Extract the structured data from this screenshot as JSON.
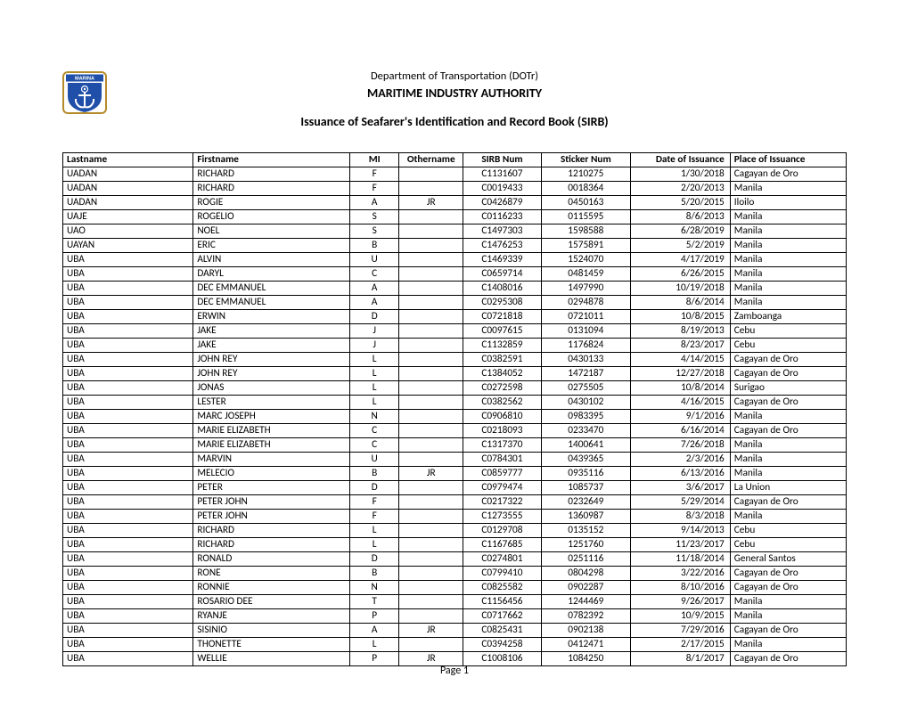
{
  "header": {
    "department": "Department of Transportation (DOTr)",
    "authority": "MARITIME INDUSTRY AUTHORITY",
    "subtitle": "Issuance of Seafarer's Identification and Record Book (SIRB)"
  },
  "logo": {
    "top_text": "MARINA",
    "bg_color": "#1f4fa8",
    "border_color": "#b58a2a",
    "symbol_color": "#ffffff"
  },
  "table": {
    "columns": [
      {
        "key": "lastname",
        "label": "Lastname",
        "class": "col-lastname"
      },
      {
        "key": "firstname",
        "label": "Firstname",
        "class": "col-firstname"
      },
      {
        "key": "mi",
        "label": "MI",
        "class": "col-mi"
      },
      {
        "key": "othername",
        "label": "Othername",
        "class": "col-othername"
      },
      {
        "key": "sirb",
        "label": "SIRB Num",
        "class": "col-sirb"
      },
      {
        "key": "sticker",
        "label": "Sticker Num",
        "class": "col-sticker"
      },
      {
        "key": "date",
        "label": "Date of Issuance",
        "class": "col-date"
      },
      {
        "key": "place",
        "label": "Place of Issuance",
        "class": "col-place"
      }
    ],
    "rows": [
      {
        "lastname": "UADAN",
        "firstname": "RICHARD",
        "mi": "F",
        "othername": "",
        "sirb": "C1131607",
        "sticker": "1210275",
        "date": "1/30/2018",
        "place": "Cagayan de Oro"
      },
      {
        "lastname": "UADAN",
        "firstname": "RICHARD",
        "mi": "F",
        "othername": "",
        "sirb": "C0019433",
        "sticker": "0018364",
        "date": "2/20/2013",
        "place": "Manila"
      },
      {
        "lastname": "UADAN",
        "firstname": "ROGIE",
        "mi": "A",
        "othername": "JR",
        "sirb": "C0426879",
        "sticker": "0450163",
        "date": "5/20/2015",
        "place": "Iloilo"
      },
      {
        "lastname": "UAJE",
        "firstname": "ROGELIO",
        "mi": "S",
        "othername": "",
        "sirb": "C0116233",
        "sticker": "0115595",
        "date": "8/6/2013",
        "place": "Manila"
      },
      {
        "lastname": "UAO",
        "firstname": "NOEL",
        "mi": "S",
        "othername": "",
        "sirb": "C1497303",
        "sticker": "1598588",
        "date": "6/28/2019",
        "place": "Manila"
      },
      {
        "lastname": "UAYAN",
        "firstname": "ERIC",
        "mi": "B",
        "othername": "",
        "sirb": "C1476253",
        "sticker": "1575891",
        "date": "5/2/2019",
        "place": "Manila"
      },
      {
        "lastname": "UBA",
        "firstname": "ALVIN",
        "mi": "U",
        "othername": "",
        "sirb": "C1469339",
        "sticker": "1524070",
        "date": "4/17/2019",
        "place": "Manila"
      },
      {
        "lastname": "UBA",
        "firstname": "DARYL",
        "mi": "C",
        "othername": "",
        "sirb": "C0659714",
        "sticker": "0481459",
        "date": "6/26/2015",
        "place": "Manila"
      },
      {
        "lastname": "UBA",
        "firstname": "DEC EMMANUEL",
        "mi": "A",
        "othername": "",
        "sirb": "C1408016",
        "sticker": "1497990",
        "date": "10/19/2018",
        "place": "Manila"
      },
      {
        "lastname": "UBA",
        "firstname": "DEC EMMANUEL",
        "mi": "A",
        "othername": "",
        "sirb": "C0295308",
        "sticker": "0294878",
        "date": "8/6/2014",
        "place": "Manila"
      },
      {
        "lastname": "UBA",
        "firstname": "ERWIN",
        "mi": "D",
        "othername": "",
        "sirb": "C0721818",
        "sticker": "0721011",
        "date": "10/8/2015",
        "place": "Zamboanga"
      },
      {
        "lastname": "UBA",
        "firstname": "JAKE",
        "mi": "J",
        "othername": "",
        "sirb": "C0097615",
        "sticker": "0131094",
        "date": "8/19/2013",
        "place": "Cebu"
      },
      {
        "lastname": "UBA",
        "firstname": "JAKE",
        "mi": "J",
        "othername": "",
        "sirb": "C1132859",
        "sticker": "1176824",
        "date": "8/23/2017",
        "place": "Cebu"
      },
      {
        "lastname": "UBA",
        "firstname": "JOHN REY",
        "mi": "L",
        "othername": "",
        "sirb": "C0382591",
        "sticker": "0430133",
        "date": "4/14/2015",
        "place": "Cagayan de Oro"
      },
      {
        "lastname": "UBA",
        "firstname": "JOHN REY",
        "mi": "L",
        "othername": "",
        "sirb": "C1384052",
        "sticker": "1472187",
        "date": "12/27/2018",
        "place": "Cagayan de Oro"
      },
      {
        "lastname": "UBA",
        "firstname": "JONAS",
        "mi": "L",
        "othername": "",
        "sirb": "C0272598",
        "sticker": "0275505",
        "date": "10/8/2014",
        "place": "Surigao"
      },
      {
        "lastname": "UBA",
        "firstname": "LESTER",
        "mi": "L",
        "othername": "",
        "sirb": "C0382562",
        "sticker": "0430102",
        "date": "4/16/2015",
        "place": "Cagayan de Oro"
      },
      {
        "lastname": "UBA",
        "firstname": "MARC JOSEPH",
        "mi": "N",
        "othername": "",
        "sirb": "C0906810",
        "sticker": "0983395",
        "date": "9/1/2016",
        "place": "Manila"
      },
      {
        "lastname": "UBA",
        "firstname": "MARIE ELIZABETH",
        "mi": "C",
        "othername": "",
        "sirb": "C0218093",
        "sticker": "0233470",
        "date": "6/16/2014",
        "place": "Cagayan de Oro"
      },
      {
        "lastname": "UBA",
        "firstname": "MARIE ELIZABETH",
        "mi": "C",
        "othername": "",
        "sirb": "C1317370",
        "sticker": "1400641",
        "date": "7/26/2018",
        "place": "Manila"
      },
      {
        "lastname": "UBA",
        "firstname": "MARVIN",
        "mi": "U",
        "othername": "",
        "sirb": "C0784301",
        "sticker": "0439365",
        "date": "2/3/2016",
        "place": "Manila"
      },
      {
        "lastname": "UBA",
        "firstname": "MELECIO",
        "mi": "B",
        "othername": "JR",
        "sirb": "C0859777",
        "sticker": "0935116",
        "date": "6/13/2016",
        "place": "Manila"
      },
      {
        "lastname": "UBA",
        "firstname": "PETER",
        "mi": "D",
        "othername": "",
        "sirb": "C0979474",
        "sticker": "1085737",
        "date": "3/6/2017",
        "place": "La Union"
      },
      {
        "lastname": "UBA",
        "firstname": "PETER JOHN",
        "mi": "F",
        "othername": "",
        "sirb": "C0217322",
        "sticker": "0232649",
        "date": "5/29/2014",
        "place": "Cagayan de Oro"
      },
      {
        "lastname": "UBA",
        "firstname": "PETER JOHN",
        "mi": "F",
        "othername": "",
        "sirb": "C1273555",
        "sticker": "1360987",
        "date": "8/3/2018",
        "place": "Manila"
      },
      {
        "lastname": "UBA",
        "firstname": "RICHARD",
        "mi": "L",
        "othername": "",
        "sirb": "C0129708",
        "sticker": "0135152",
        "date": "9/14/2013",
        "place": "Cebu"
      },
      {
        "lastname": "UBA",
        "firstname": "RICHARD",
        "mi": "L",
        "othername": "",
        "sirb": "C1167685",
        "sticker": "1251760",
        "date": "11/23/2017",
        "place": "Cebu"
      },
      {
        "lastname": "UBA",
        "firstname": "RONALD",
        "mi": "D",
        "othername": "",
        "sirb": "C0274801",
        "sticker": "0251116",
        "date": "11/18/2014",
        "place": "General Santos"
      },
      {
        "lastname": "UBA",
        "firstname": "RONE",
        "mi": "B",
        "othername": "",
        "sirb": "C0799410",
        "sticker": "0804298",
        "date": "3/22/2016",
        "place": "Cagayan de Oro"
      },
      {
        "lastname": "UBA",
        "firstname": "RONNIE",
        "mi": "N",
        "othername": "",
        "sirb": "C0825582",
        "sticker": "0902287",
        "date": "8/10/2016",
        "place": "Cagayan de Oro"
      },
      {
        "lastname": "UBA",
        "firstname": "ROSARIO DEE",
        "mi": "T",
        "othername": "",
        "sirb": "C1156456",
        "sticker": "1244469",
        "date": "9/26/2017",
        "place": "Manila"
      },
      {
        "lastname": "UBA",
        "firstname": "RYANJE",
        "mi": "P",
        "othername": "",
        "sirb": "C0717662",
        "sticker": "0782392",
        "date": "10/9/2015",
        "place": "Manila"
      },
      {
        "lastname": "UBA",
        "firstname": "SISINIO",
        "mi": "A",
        "othername": "JR",
        "sirb": "C0825431",
        "sticker": "0902138",
        "date": "7/29/2016",
        "place": "Cagayan de Oro"
      },
      {
        "lastname": "UBA",
        "firstname": "THONETTE",
        "mi": "L",
        "othername": "",
        "sirb": "C0394258",
        "sticker": "0412471",
        "date": "2/17/2015",
        "place": "Manila"
      },
      {
        "lastname": "UBA",
        "firstname": "WELLIE",
        "mi": "P",
        "othername": "JR",
        "sirb": "C1008106",
        "sticker": "1084250",
        "date": "8/1/2017",
        "place": "Cagayan de Oro"
      }
    ]
  },
  "footer": {
    "page_label": "Page 1"
  }
}
